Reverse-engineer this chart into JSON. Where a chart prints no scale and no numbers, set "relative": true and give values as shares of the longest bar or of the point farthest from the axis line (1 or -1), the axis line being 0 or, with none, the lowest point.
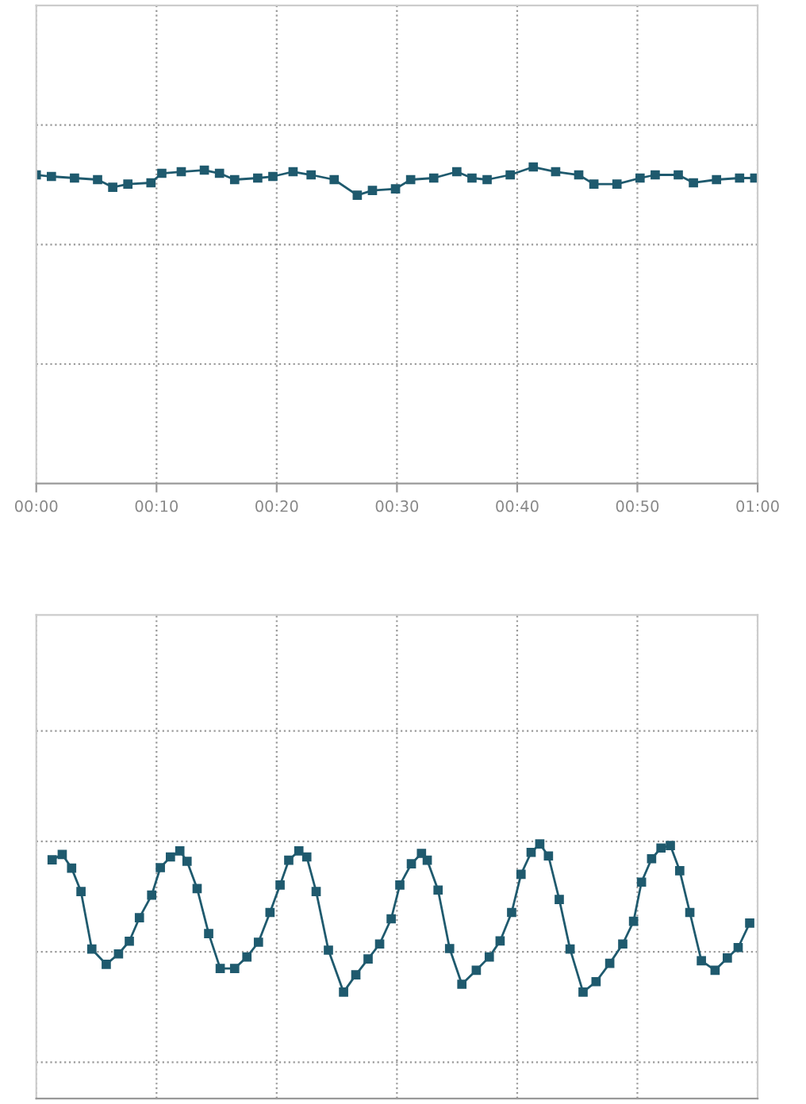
{
  "chart_data": [
    {
      "type": "line",
      "relative": true,
      "tick_labels": "x",
      "grid": true,
      "marker": "square",
      "line_style": "solid",
      "xlim": [
        0,
        1
      ],
      "xticks": [
        {
          "value": 0,
          "label": "00:00"
        },
        {
          "value": 0.1667,
          "label": "00:10"
        },
        {
          "value": 0.3333,
          "label": "00:20"
        },
        {
          "value": 0.5,
          "label": "00:30"
        },
        {
          "value": 0.6667,
          "label": "00:40"
        },
        {
          "value": 0.8333,
          "label": "00:50"
        },
        {
          "value": 1,
          "label": "01:00"
        }
      ],
      "series": [
        {
          "color": "#1f5a6e",
          "x": [
            0,
            0.021,
            0.053,
            0.085,
            0.106,
            0.127,
            0.159,
            0.174,
            0.201,
            0.233,
            0.254,
            0.275,
            0.307,
            0.328,
            0.356,
            0.381,
            0.413,
            0.445,
            0.466,
            0.498,
            0.519,
            0.551,
            0.583,
            0.604,
            0.625,
            0.657,
            0.689,
            0.72,
            0.752,
            0.773,
            0.805,
            0.837,
            0.858,
            0.89,
            0.911,
            0.943,
            0.975,
            0.996
          ],
          "values": [
            0.975,
            0.97,
            0.965,
            0.96,
            0.936,
            0.946,
            0.95,
            0.98,
            0.985,
            0.99,
            0.98,
            0.96,
            0.965,
            0.97,
            0.985,
            0.975,
            0.96,
            0.911,
            0.926,
            0.931,
            0.96,
            0.965,
            0.985,
            0.965,
            0.96,
            0.975,
            1.0,
            0.985,
            0.975,
            0.946,
            0.946,
            0.965,
            0.975,
            0.975,
            0.95,
            0.96,
            0.965,
            0.965
          ]
        }
      ]
    },
    {
      "type": "line",
      "relative": true,
      "tick_labels": false,
      "grid": true,
      "marker": "square",
      "line_style": "solid",
      "xlim": [
        0,
        1
      ],
      "xticks": [
        {
          "value": 0,
          "label": null
        },
        {
          "value": 0.1667,
          "label": null
        },
        {
          "value": 0.3333,
          "label": null
        },
        {
          "value": 0.5,
          "label": null
        },
        {
          "value": 0.6667,
          "label": null
        },
        {
          "value": 0.8333,
          "label": null
        },
        {
          "value": 1,
          "label": null
        }
      ],
      "series": [
        {
          "color": "#1f5a6e",
          "x": [
            0.022,
            0.036,
            0.049,
            0.062,
            0.077,
            0.097,
            0.114,
            0.129,
            0.143,
            0.16,
            0.172,
            0.186,
            0.199,
            0.209,
            0.223,
            0.239,
            0.255,
            0.275,
            0.292,
            0.308,
            0.324,
            0.338,
            0.35,
            0.364,
            0.375,
            0.388,
            0.405,
            0.426,
            0.443,
            0.46,
            0.476,
            0.492,
            0.504,
            0.52,
            0.534,
            0.542,
            0.557,
            0.573,
            0.59,
            0.61,
            0.628,
            0.643,
            0.659,
            0.672,
            0.686,
            0.698,
            0.71,
            0.725,
            0.74,
            0.758,
            0.776,
            0.795,
            0.813,
            0.828,
            0.839,
            0.853,
            0.866,
            0.879,
            0.892,
            0.906,
            0.922,
            0.941,
            0.958,
            0.973,
            0.989
          ],
          "values": [
            0.938,
            0.959,
            0.905,
            0.813,
            0.587,
            0.527,
            0.568,
            0.618,
            0.71,
            0.799,
            0.907,
            0.949,
            0.973,
            0.932,
            0.825,
            0.648,
            0.511,
            0.511,
            0.556,
            0.614,
            0.731,
            0.839,
            0.936,
            0.973,
            0.949,
            0.813,
            0.583,
            0.418,
            0.486,
            0.548,
            0.607,
            0.706,
            0.839,
            0.922,
            0.963,
            0.936,
            0.819,
            0.589,
            0.449,
            0.504,
            0.556,
            0.619,
            0.731,
            0.881,
            0.967,
            1.0,
            0.953,
            0.782,
            0.587,
            0.418,
            0.459,
            0.531,
            0.607,
            0.696,
            0.85,
            0.942,
            0.984,
            0.994,
            0.895,
            0.731,
            0.541,
            0.504,
            0.552,
            0.593,
            0.689
          ]
        }
      ]
    }
  ]
}
